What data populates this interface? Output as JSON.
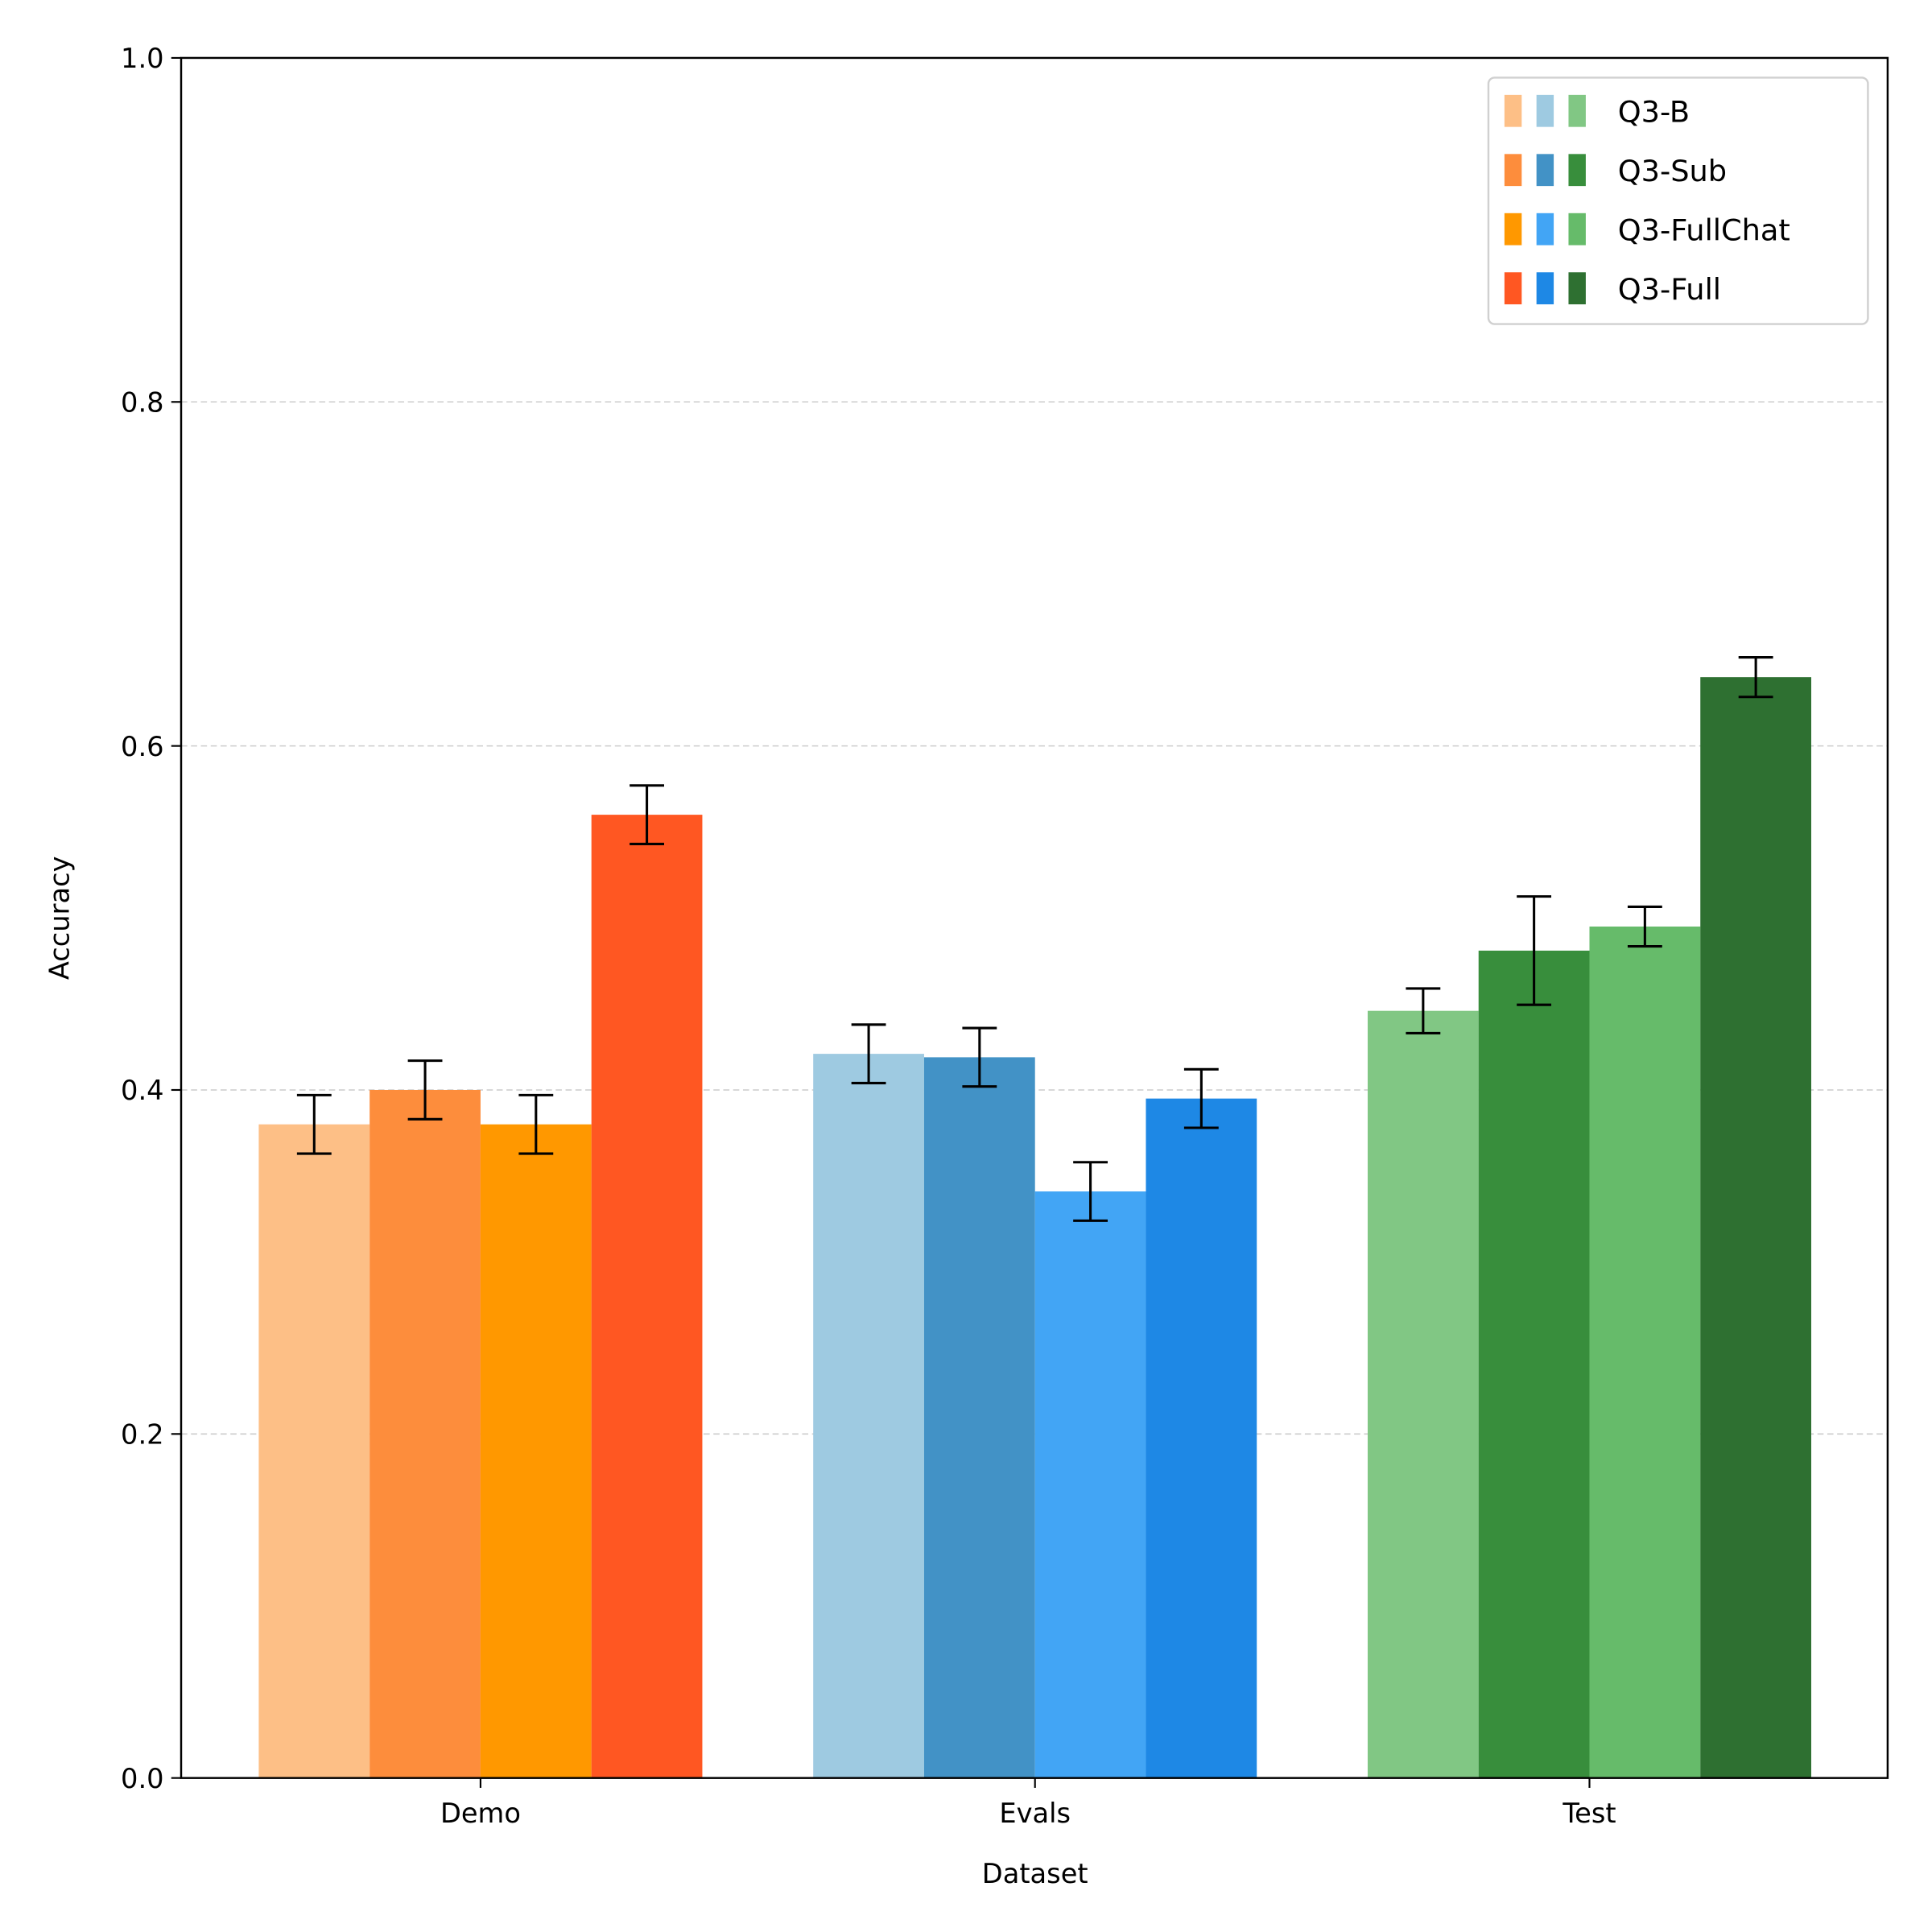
{
  "chart_data": {
    "type": "bar",
    "title": "",
    "xlabel": "Dataset",
    "ylabel": "Accuracy",
    "ylim": [
      0,
      1.0
    ],
    "yticks": [
      "0.0",
      "0.2",
      "0.4",
      "0.6",
      "0.8",
      "1.0"
    ],
    "grid": "y, dashed",
    "legend_placement": "top-right",
    "categories": [
      "Demo",
      "Evals",
      "Test"
    ],
    "series": [
      {
        "name": "Q3-B",
        "values": [
          0.38,
          0.421,
          0.446
        ],
        "errors": [
          0.017,
          0.017,
          0.013
        ],
        "colors": [
          "#fdbf86",
          "#9ecae1",
          "#81c784"
        ]
      },
      {
        "name": "Q3-Sub",
        "values": [
          0.4,
          0.419,
          0.481
        ],
        "errors": [
          0.017,
          0.017,
          0.0315
        ],
        "colors": [
          "#fd8d3c",
          "#4292c6",
          "#388e3c"
        ]
      },
      {
        "name": "Q3-FullChat",
        "values": [
          0.38,
          0.341,
          0.495
        ],
        "errors": [
          0.017,
          0.017,
          0.0115
        ],
        "colors": [
          "#ff9800",
          "#42a5f5",
          "#66bb6a"
        ]
      },
      {
        "name": "Q3-Full",
        "values": [
          0.56,
          0.395,
          0.64
        ],
        "errors": [
          0.017,
          0.017,
          0.0115
        ],
        "colors": [
          "#ff5722",
          "#1e88e5",
          "#2e7031"
        ]
      }
    ]
  }
}
